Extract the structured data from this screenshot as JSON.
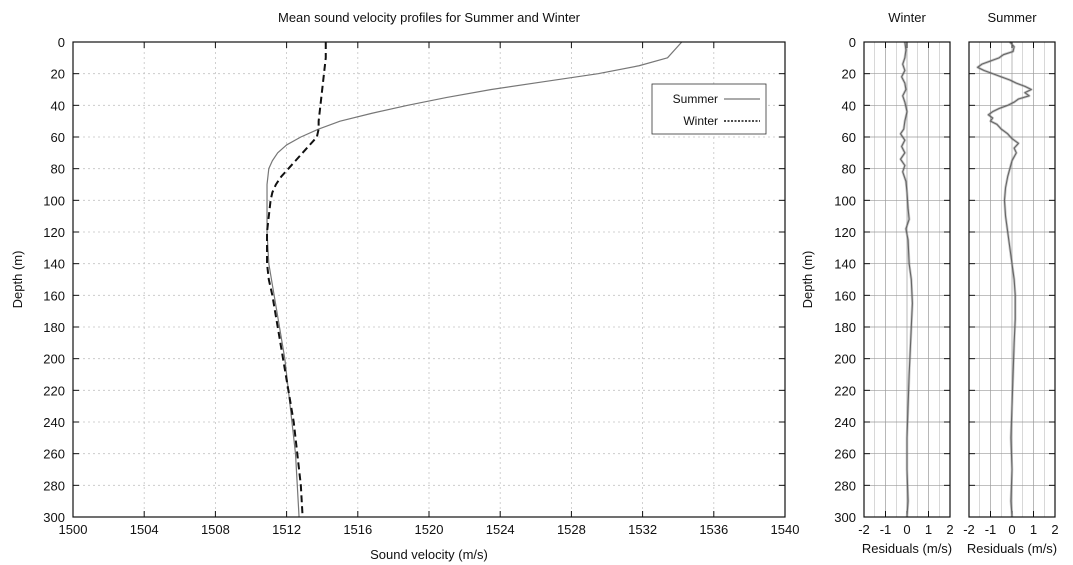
{
  "chart_data": [
    {
      "type": "line",
      "title": "Mean sound velocity profiles for Summer and Winter",
      "xlabel": "Sound velocity (m/s)",
      "ylabel": "Depth (m)",
      "xlim": [
        1500,
        1540
      ],
      "ylim": [
        0,
        300
      ],
      "y_inverted": true,
      "grid": true,
      "legend_position": "top-right",
      "x_ticks": [
        "1500",
        "1504",
        "1508",
        "1512",
        "1516",
        "1520",
        "1524",
        "1528",
        "1532",
        "1536",
        "1540"
      ],
      "y_ticks": [
        "0",
        "20",
        "40",
        "60",
        "80",
        "100",
        "120",
        "140",
        "160",
        "180",
        "200",
        "220",
        "240",
        "260",
        "280",
        "300"
      ],
      "series": [
        {
          "name": "Summer",
          "style": "solid",
          "color": "#777777",
          "points": [
            [
              1534.2,
              0
            ],
            [
              1533.4,
              10
            ],
            [
              1531.8,
              15
            ],
            [
              1529.5,
              20
            ],
            [
              1526.5,
              25
            ],
            [
              1523.5,
              30
            ],
            [
              1521.0,
              35
            ],
            [
              1518.8,
              40
            ],
            [
              1516.8,
              45
            ],
            [
              1515.0,
              50
            ],
            [
              1513.8,
              55
            ],
            [
              1512.8,
              60
            ],
            [
              1512.0,
              65
            ],
            [
              1511.5,
              70
            ],
            [
              1511.2,
              75
            ],
            [
              1511.0,
              80
            ],
            [
              1510.9,
              90
            ],
            [
              1510.9,
              100
            ],
            [
              1510.9,
              120
            ],
            [
              1511.0,
              140
            ],
            [
              1511.3,
              160
            ],
            [
              1511.6,
              180
            ],
            [
              1511.9,
              200
            ],
            [
              1512.1,
              220
            ],
            [
              1512.3,
              240
            ],
            [
              1512.5,
              260
            ],
            [
              1512.6,
              280
            ],
            [
              1512.7,
              300
            ]
          ]
        },
        {
          "name": "Winter",
          "style": "dashed",
          "color": "#111111",
          "points": [
            [
              1514.2,
              0
            ],
            [
              1514.2,
              10
            ],
            [
              1514.1,
              20
            ],
            [
              1514.0,
              30
            ],
            [
              1513.9,
              40
            ],
            [
              1513.8,
              50
            ],
            [
              1513.8,
              55
            ],
            [
              1513.7,
              60
            ],
            [
              1513.3,
              65
            ],
            [
              1512.9,
              70
            ],
            [
              1512.5,
              75
            ],
            [
              1512.1,
              80
            ],
            [
              1511.7,
              85
            ],
            [
              1511.4,
              90
            ],
            [
              1511.2,
              95
            ],
            [
              1511.1,
              100
            ],
            [
              1511.0,
              110
            ],
            [
              1510.9,
              120
            ],
            [
              1510.9,
              130
            ],
            [
              1510.9,
              140
            ],
            [
              1511.0,
              150
            ],
            [
              1511.2,
              160
            ],
            [
              1511.5,
              180
            ],
            [
              1511.8,
              200
            ],
            [
              1512.1,
              220
            ],
            [
              1512.4,
              240
            ],
            [
              1512.6,
              260
            ],
            [
              1512.8,
              280
            ],
            [
              1512.9,
              300
            ]
          ]
        }
      ]
    },
    {
      "type": "line",
      "title": "Winter",
      "xlabel": "Residuals (m/s)",
      "ylabel": "Depth (m)",
      "xlim": [
        -2,
        2
      ],
      "ylim": [
        0,
        300
      ],
      "y_inverted": true,
      "grid": true,
      "x_ticks": [
        "-2",
        "-1",
        "0",
        "1",
        "2"
      ],
      "y_ticks": [
        "0",
        "20",
        "40",
        "60",
        "80",
        "100",
        "120",
        "140",
        "160",
        "180",
        "200",
        "220",
        "240",
        "260",
        "280",
        "300"
      ],
      "series": [
        {
          "color": "#666666",
          "points": [
            [
              -0.1,
              0
            ],
            [
              -0.05,
              5
            ],
            [
              -0.1,
              10
            ],
            [
              -0.2,
              14
            ],
            [
              -0.1,
              18
            ],
            [
              -0.25,
              22
            ],
            [
              -0.1,
              26
            ],
            [
              -0.05,
              30
            ],
            [
              -0.2,
              34
            ],
            [
              -0.1,
              38
            ],
            [
              0.0,
              44
            ],
            [
              -0.1,
              50
            ],
            [
              -0.15,
              55
            ],
            [
              -0.3,
              58
            ],
            [
              -0.1,
              62
            ],
            [
              -0.25,
              66
            ],
            [
              -0.1,
              70
            ],
            [
              -0.3,
              74
            ],
            [
              -0.1,
              78
            ],
            [
              -0.2,
              82
            ],
            [
              -0.05,
              88
            ],
            [
              0.0,
              95
            ],
            [
              0.05,
              105
            ],
            [
              0.1,
              112
            ],
            [
              -0.05,
              118
            ],
            [
              0.05,
              125
            ],
            [
              0.1,
              140
            ],
            [
              0.2,
              150
            ],
            [
              0.25,
              165
            ],
            [
              0.2,
              180
            ],
            [
              0.15,
              195
            ],
            [
              0.1,
              210
            ],
            [
              0.05,
              230
            ],
            [
              0.0,
              250
            ],
            [
              0.0,
              270
            ],
            [
              0.05,
              290
            ],
            [
              0.0,
              300
            ]
          ]
        }
      ]
    },
    {
      "type": "line",
      "title": "Summer",
      "xlabel": "Residuals (m/s)",
      "ylabel": "",
      "xlim": [
        -2,
        2
      ],
      "ylim": [
        0,
        300
      ],
      "y_inverted": true,
      "grid": true,
      "x_ticks": [
        "-2",
        "-1",
        "0",
        "1",
        "2"
      ],
      "series": [
        {
          "color": "#666666",
          "points": [
            [
              -0.1,
              0
            ],
            [
              0.1,
              3
            ],
            [
              0.05,
              6
            ],
            [
              -0.4,
              8
            ],
            [
              -0.6,
              10
            ],
            [
              -1.0,
              12
            ],
            [
              -1.4,
              14
            ],
            [
              -1.6,
              16
            ],
            [
              -1.3,
              18
            ],
            [
              -0.9,
              20
            ],
            [
              -0.5,
              22
            ],
            [
              -0.1,
              24
            ],
            [
              0.2,
              26
            ],
            [
              0.6,
              28
            ],
            [
              0.9,
              30
            ],
            [
              0.6,
              32
            ],
            [
              0.8,
              34
            ],
            [
              0.3,
              36
            ],
            [
              0.1,
              38
            ],
            [
              -0.2,
              40
            ],
            [
              -0.6,
              42
            ],
            [
              -0.9,
              44
            ],
            [
              -1.1,
              46
            ],
            [
              -0.9,
              48
            ],
            [
              -1.0,
              50
            ],
            [
              -0.7,
              52
            ],
            [
              -0.5,
              55
            ],
            [
              -0.2,
              58
            ],
            [
              0.0,
              61
            ],
            [
              0.3,
              64
            ],
            [
              0.1,
              67
            ],
            [
              0.2,
              70
            ],
            [
              0.0,
              75
            ],
            [
              -0.1,
              80
            ],
            [
              -0.2,
              85
            ],
            [
              -0.3,
              92
            ],
            [
              -0.35,
              100
            ],
            [
              -0.3,
              110
            ],
            [
              -0.2,
              120
            ],
            [
              -0.1,
              130
            ],
            [
              0.0,
              140
            ],
            [
              0.1,
              150
            ],
            [
              0.15,
              160
            ],
            [
              0.15,
              175
            ],
            [
              0.1,
              190
            ],
            [
              0.05,
              210
            ],
            [
              0.0,
              230
            ],
            [
              -0.05,
              250
            ],
            [
              0.0,
              270
            ],
            [
              -0.05,
              290
            ],
            [
              0.0,
              300
            ]
          ]
        }
      ]
    }
  ]
}
